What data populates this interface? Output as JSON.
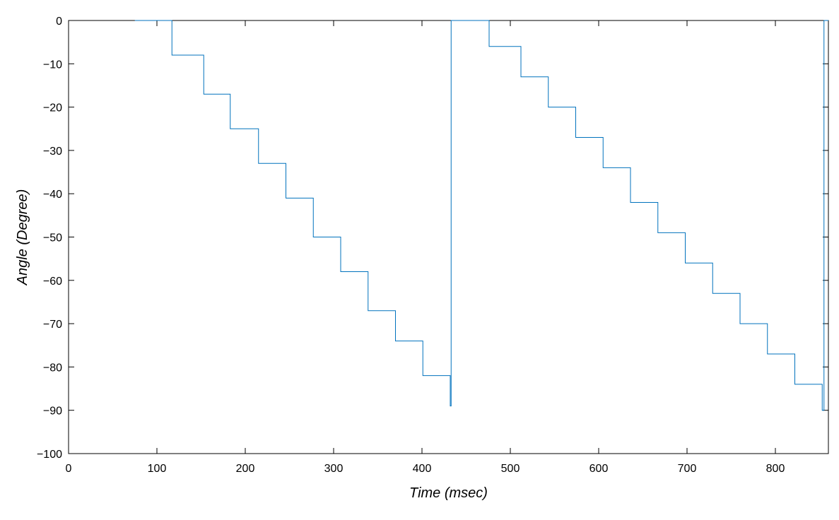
{
  "chart_data": {
    "type": "line",
    "title": "",
    "xlabel": "Time (msec)",
    "ylabel": "Angle (Degree)",
    "xlim": [
      0,
      860
    ],
    "ylim": [
      -100,
      0
    ],
    "xticks": [
      0,
      100,
      200,
      300,
      400,
      500,
      600,
      700,
      800
    ],
    "yticks": [
      0,
      -10,
      -20,
      -30,
      -40,
      -50,
      -60,
      -70,
      -80,
      -90,
      -100
    ],
    "grid": false,
    "legend": "none",
    "colors": {
      "line": "#0072BD",
      "axis": "#000000"
    },
    "series": [
      {
        "x": [
          75,
          117,
          117,
          153,
          153,
          183,
          183,
          215,
          215,
          246,
          246,
          277,
          277,
          308,
          308,
          339,
          339,
          370,
          370,
          401,
          401,
          432,
          432,
          433,
          433,
          476,
          476,
          512,
          512,
          543,
          543,
          574,
          574,
          605,
          605,
          636,
          636,
          667,
          667,
          698,
          698,
          729,
          729,
          760,
          760,
          791,
          791,
          822,
          822,
          853,
          853,
          855,
          855,
          860
        ],
        "y": [
          0,
          0,
          -8,
          -8,
          -17,
          -17,
          -25,
          -25,
          -33,
          -33,
          -41,
          -41,
          -50,
          -50,
          -58,
          -58,
          -67,
          -67,
          -74,
          -74,
          -82,
          -82,
          -89,
          -89,
          0,
          0,
          -6,
          -6,
          -13,
          -13,
          -20,
          -20,
          -27,
          -27,
          -34,
          -34,
          -42,
          -42,
          -49,
          -49,
          -56,
          -56,
          -63,
          -63,
          -70,
          -70,
          -77,
          -77,
          -84,
          -84,
          -90,
          -90,
          0,
          0
        ]
      }
    ]
  }
}
